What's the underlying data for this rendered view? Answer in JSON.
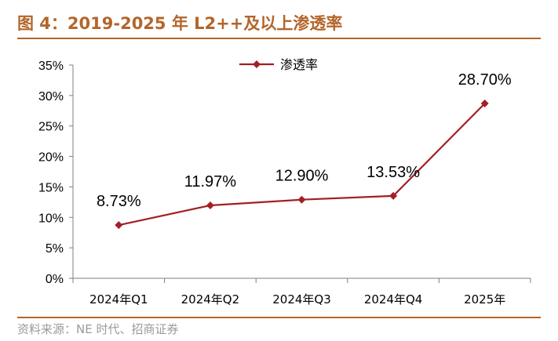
{
  "figure": {
    "title": "图 4：2019-2025 年 L2++及以上渗透率",
    "source": "资料来源：NE 时代、招商证券"
  },
  "colors": {
    "title": "#b4652a",
    "series": "#a31f24",
    "axis": "#7f7f7f",
    "source": "#9a9a9a"
  },
  "chart_data": {
    "type": "line",
    "categories": [
      "2024年Q1",
      "2024年Q2",
      "2024年Q3",
      "2024年Q4",
      "2025年"
    ],
    "series": [
      {
        "name": "渗透率",
        "values": [
          8.73,
          11.97,
          12.9,
          13.53,
          28.7
        ],
        "labels": [
          "8.73%",
          "11.97%",
          "12.90%",
          "13.53%",
          "28.70%"
        ],
        "marker": "diamond"
      }
    ],
    "ylim": [
      0,
      35
    ],
    "yticks": [
      0,
      5,
      10,
      15,
      20,
      25,
      30,
      35
    ],
    "ytick_labels": [
      "0%",
      "5%",
      "10%",
      "15%",
      "20%",
      "25%",
      "30%",
      "35%"
    ],
    "xlabel": "",
    "ylabel": "",
    "grid": false,
    "legend": "top-center"
  }
}
